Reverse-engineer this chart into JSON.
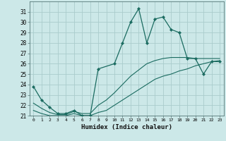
{
  "xlabel": "Humidex (Indice chaleur)",
  "bg_color": "#cce8e8",
  "grid_color": "#aacccc",
  "line_color": "#1a6b60",
  "xlim": [
    -0.5,
    23.5
  ],
  "ylim": [
    21,
    32
  ],
  "xticks": [
    0,
    1,
    2,
    3,
    4,
    5,
    6,
    7,
    8,
    9,
    10,
    11,
    12,
    13,
    14,
    15,
    16,
    17,
    18,
    19,
    20,
    21,
    22,
    23
  ],
  "yticks": [
    21,
    22,
    23,
    24,
    25,
    26,
    27,
    28,
    29,
    30,
    31
  ],
  "main_x": [
    0,
    1,
    2,
    3,
    4,
    5,
    6,
    7,
    8,
    10,
    11,
    12,
    13,
    14,
    15,
    16,
    17,
    18,
    19,
    20,
    21,
    22,
    23
  ],
  "main_y": [
    23.8,
    22.5,
    21.8,
    21.2,
    21.2,
    21.5,
    21.0,
    21.0,
    25.5,
    26.0,
    28.0,
    30.0,
    31.3,
    28.0,
    30.3,
    30.5,
    29.3,
    29.0,
    26.5,
    26.5,
    25.0,
    26.2,
    26.2
  ],
  "lower_x": [
    0,
    1,
    2,
    3,
    4,
    5,
    6,
    7,
    8,
    9,
    10,
    11,
    12,
    13,
    14,
    15,
    16,
    17,
    18,
    19,
    20,
    21,
    22,
    23
  ],
  "lower_y": [
    21.5,
    21.2,
    21.0,
    21.0,
    21.0,
    21.2,
    21.0,
    21.0,
    21.3,
    21.5,
    22.0,
    22.5,
    23.0,
    23.5,
    24.0,
    24.5,
    24.8,
    25.0,
    25.3,
    25.5,
    25.8,
    26.0,
    26.2,
    26.3
  ],
  "upper_x": [
    0,
    1,
    2,
    3,
    4,
    5,
    6,
    7,
    8,
    9,
    10,
    11,
    12,
    13,
    14,
    15,
    16,
    17,
    18,
    19,
    20,
    21,
    22,
    23
  ],
  "upper_y": [
    22.2,
    21.7,
    21.3,
    21.1,
    21.1,
    21.4,
    21.2,
    21.2,
    22.0,
    22.5,
    23.2,
    24.0,
    24.8,
    25.4,
    26.0,
    26.3,
    26.5,
    26.6,
    26.6,
    26.6,
    26.5,
    26.5,
    26.5,
    26.5
  ]
}
